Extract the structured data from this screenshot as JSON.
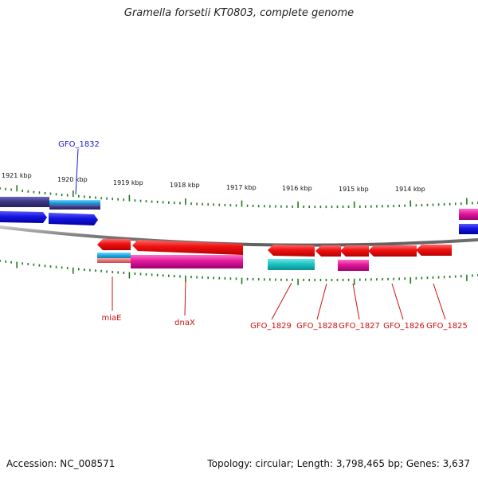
{
  "title": "Gramella forsetii KT0803, complete genome",
  "footer": {
    "accession": "Accession: NC_008571",
    "summary": "Topology: circular; Length: 3,798,465 bp; Genes: 3,637"
  },
  "colors": {
    "backbone": "#8a8a8a",
    "tick": "#1f7a1f",
    "forward_label": "#1a1acc",
    "reverse_label": "#cc1111",
    "red_gene": "#ee1111",
    "blue_gene": "#1515e0",
    "cyan_gene": "#1cc4c4",
    "sky_gene": "#22b0e8",
    "magenta_gene": "#e0189a",
    "navy_gene": "#3c3888",
    "salmon_gene": "#e87878"
  },
  "bp_labels": [
    "1921 kbp",
    "1920 kbp",
    "1919 kbp",
    "1918 kbp",
    "1917 kbp",
    "1916 kbp",
    "1915 kbp",
    "1914 kbp"
  ],
  "genes_forward": [
    {
      "label": "GFO_1832"
    }
  ],
  "genes_reverse": [
    {
      "label": "miaE"
    },
    {
      "label": "dnaX"
    },
    {
      "label": "GFO_1829"
    },
    {
      "label": "GFO_1828"
    },
    {
      "label": "GFO_1827"
    },
    {
      "label": "GFO_1826"
    },
    {
      "label": "GFO_1825"
    }
  ]
}
